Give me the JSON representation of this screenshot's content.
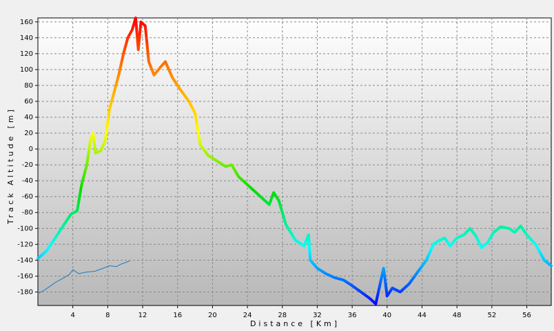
{
  "chart_data": {
    "type": "line",
    "xlabel": "Distance [Km]",
    "ylabel": "Track Altitude [m]",
    "xlim": [
      0,
      58.8
    ],
    "ylim": [
      -197,
      165
    ],
    "xticks": [
      4,
      8,
      12,
      16,
      20,
      24,
      28,
      32,
      36,
      40,
      44,
      48,
      52,
      56
    ],
    "yticks": [
      -180,
      -160,
      -140,
      -120,
      -100,
      -80,
      -60,
      -40,
      -20,
      0,
      20,
      40,
      60,
      80,
      100,
      120,
      140,
      160
    ],
    "grid": true,
    "series": [
      {
        "colorscale": [
          "#ff0000",
          "#ff8c00",
          "#ffff00",
          "#00dd00",
          "#00ffff",
          "#0000ff"
        ],
        "width": 4,
        "x": [
          0,
          1,
          2,
          3,
          3.8,
          4.5,
          5,
          5.6,
          6,
          6.3,
          6.6,
          7.2,
          7.7,
          8.2,
          8.7,
          9.3,
          9.8,
          10.3,
          10.8,
          11.2,
          11.5,
          11.8,
          12.3,
          12.7,
          13.3,
          14.2,
          14.6,
          15.4,
          16.3,
          17.3,
          18,
          18.6,
          19.5,
          20.5,
          21.5,
          22.2,
          23,
          24,
          25,
          26,
          26.5,
          27,
          27.6,
          28.4,
          29.5,
          30.5,
          31,
          31.2,
          32,
          33,
          34,
          35,
          36,
          37,
          38,
          38.7,
          39.3,
          39.6,
          40,
          40.6,
          41.5,
          42.5,
          43.5,
          44.5,
          45.3,
          46,
          46.6,
          47.2,
          48,
          48.8,
          49.5,
          50.2,
          50.8,
          51.5,
          52.2,
          53,
          54,
          54.6,
          55.3,
          56,
          57,
          58,
          58.8
        ],
        "values": [
          -138,
          -128,
          -112,
          -95,
          -82,
          -78,
          -45,
          -20,
          10,
          20,
          -5,
          -2,
          10,
          50,
          70,
          95,
          120,
          140,
          150,
          165,
          125,
          160,
          155,
          110,
          93,
          105,
          110,
          90,
          75,
          60,
          45,
          5,
          -8,
          -15,
          -22,
          -20,
          -35,
          -45,
          -55,
          -65,
          -70,
          -55,
          -65,
          -95,
          -115,
          -122,
          -108,
          -140,
          -150,
          -157,
          -162,
          -165,
          -172,
          -180,
          -188,
          -195,
          -165,
          -150,
          -185,
          -175,
          -180,
          -170,
          -155,
          -140,
          -120,
          -115,
          -112,
          -122,
          -112,
          -108,
          -100,
          -110,
          -124,
          -118,
          -105,
          -98,
          -100,
          -105,
          -97,
          -108,
          -120,
          -140,
          -147
        ]
      },
      {
        "color": "#1a7ac0",
        "width": 1,
        "x": [
          0,
          0.7,
          1.5,
          2,
          3,
          3.6,
          4,
          4.7,
          5.5,
          6.5,
          7.5,
          8.2,
          9,
          9.5,
          10.5
        ],
        "values": [
          -182,
          -178,
          -172,
          -168,
          -162,
          -158,
          -152,
          -157,
          -155,
          -154,
          -150,
          -147,
          -148,
          -145,
          -141
        ]
      }
    ]
  }
}
